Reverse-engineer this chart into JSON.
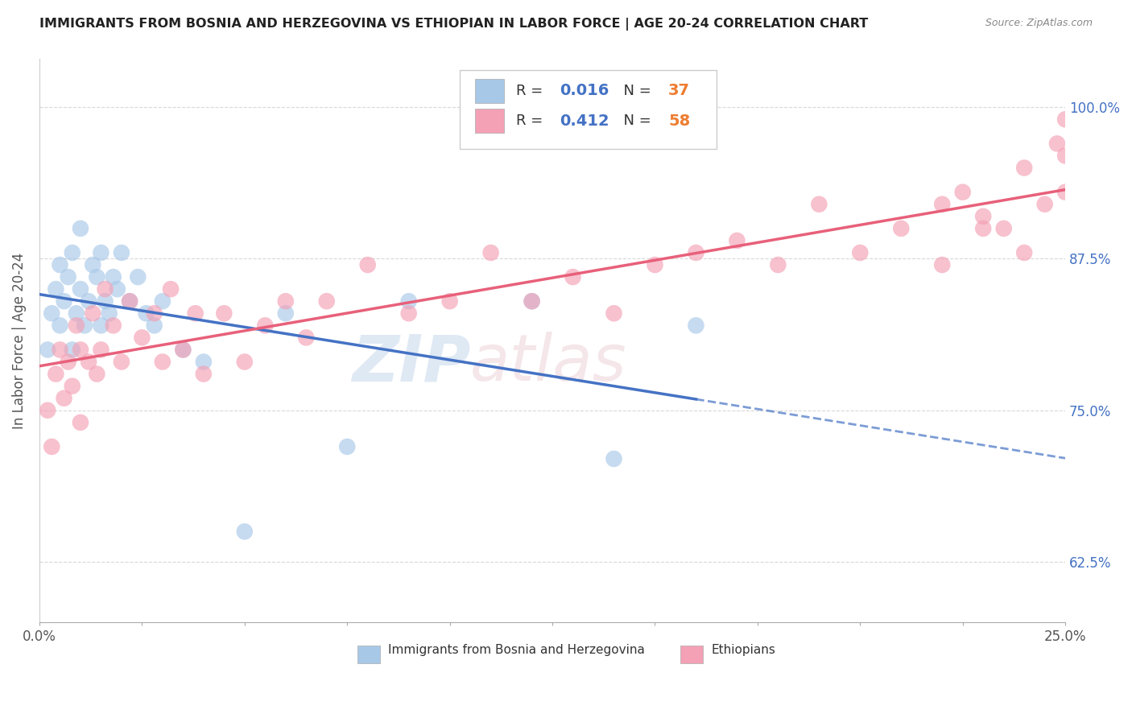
{
  "title": "IMMIGRANTS FROM BOSNIA AND HERZEGOVINA VS ETHIOPIAN IN LABOR FORCE | AGE 20-24 CORRELATION CHART",
  "source": "Source: ZipAtlas.com",
  "ylabel": "In Labor Force | Age 20-24",
  "xlim": [
    0.0,
    0.25
  ],
  "ylim": [
    0.575,
    1.04
  ],
  "yticks": [
    0.625,
    0.75,
    0.875,
    1.0
  ],
  "ytick_labels": [
    "62.5%",
    "75.0%",
    "87.5%",
    "100.0%"
  ],
  "xticks": [
    0.0,
    0.025,
    0.05,
    0.075,
    0.1,
    0.125,
    0.15,
    0.175,
    0.2,
    0.225,
    0.25
  ],
  "xtick_labels_show": [
    "0.0%",
    "",
    "",
    "",
    "",
    "",
    "",
    "",
    "",
    "",
    "25.0%"
  ],
  "bosnia_R": 0.016,
  "bosnia_N": 37,
  "ethiopian_R": 0.412,
  "ethiopian_N": 58,
  "bosnia_color": "#a8c8e8",
  "ethiopian_color": "#f4a0b5",
  "bosnia_line_color": "#4472c4",
  "ethiopian_line_color": "#e8607a",
  "legend_R_color": "#4472c4",
  "legend_N_color": "#ed7d31",
  "background_color": "#ffffff",
  "grid_color": "#d8d8d8",
  "bosnia_x": [
    0.002,
    0.003,
    0.004,
    0.005,
    0.005,
    0.006,
    0.007,
    0.008,
    0.008,
    0.009,
    0.01,
    0.01,
    0.011,
    0.012,
    0.013,
    0.014,
    0.015,
    0.015,
    0.016,
    0.017,
    0.018,
    0.019,
    0.02,
    0.022,
    0.024,
    0.026,
    0.028,
    0.03,
    0.035,
    0.04,
    0.05,
    0.06,
    0.075,
    0.09,
    0.12,
    0.14,
    0.16
  ],
  "bosnia_y": [
    0.8,
    0.83,
    0.85,
    0.82,
    0.87,
    0.84,
    0.86,
    0.8,
    0.88,
    0.83,
    0.85,
    0.9,
    0.82,
    0.84,
    0.87,
    0.86,
    0.82,
    0.88,
    0.84,
    0.83,
    0.86,
    0.85,
    0.88,
    0.84,
    0.86,
    0.83,
    0.82,
    0.84,
    0.8,
    0.79,
    0.65,
    0.83,
    0.72,
    0.84,
    0.84,
    0.71,
    0.82
  ],
  "ethiopian_x": [
    0.002,
    0.003,
    0.004,
    0.005,
    0.006,
    0.007,
    0.008,
    0.009,
    0.01,
    0.01,
    0.012,
    0.013,
    0.014,
    0.015,
    0.016,
    0.018,
    0.02,
    0.022,
    0.025,
    0.028,
    0.03,
    0.032,
    0.035,
    0.038,
    0.04,
    0.045,
    0.05,
    0.055,
    0.06,
    0.065,
    0.07,
    0.08,
    0.09,
    0.1,
    0.11,
    0.12,
    0.13,
    0.14,
    0.15,
    0.16,
    0.17,
    0.18,
    0.19,
    0.2,
    0.21,
    0.22,
    0.225,
    0.23,
    0.235,
    0.24,
    0.245,
    0.248,
    0.25,
    0.25,
    0.25,
    0.24,
    0.23,
    0.22
  ],
  "ethiopian_y": [
    0.75,
    0.72,
    0.78,
    0.8,
    0.76,
    0.79,
    0.77,
    0.82,
    0.74,
    0.8,
    0.79,
    0.83,
    0.78,
    0.8,
    0.85,
    0.82,
    0.79,
    0.84,
    0.81,
    0.83,
    0.79,
    0.85,
    0.8,
    0.83,
    0.78,
    0.83,
    0.79,
    0.82,
    0.84,
    0.81,
    0.84,
    0.87,
    0.83,
    0.84,
    0.88,
    0.84,
    0.86,
    0.83,
    0.87,
    0.88,
    0.89,
    0.87,
    0.92,
    0.88,
    0.9,
    0.92,
    0.93,
    0.91,
    0.9,
    0.95,
    0.92,
    0.97,
    0.93,
    0.96,
    0.99,
    0.88,
    0.9,
    0.87
  ]
}
